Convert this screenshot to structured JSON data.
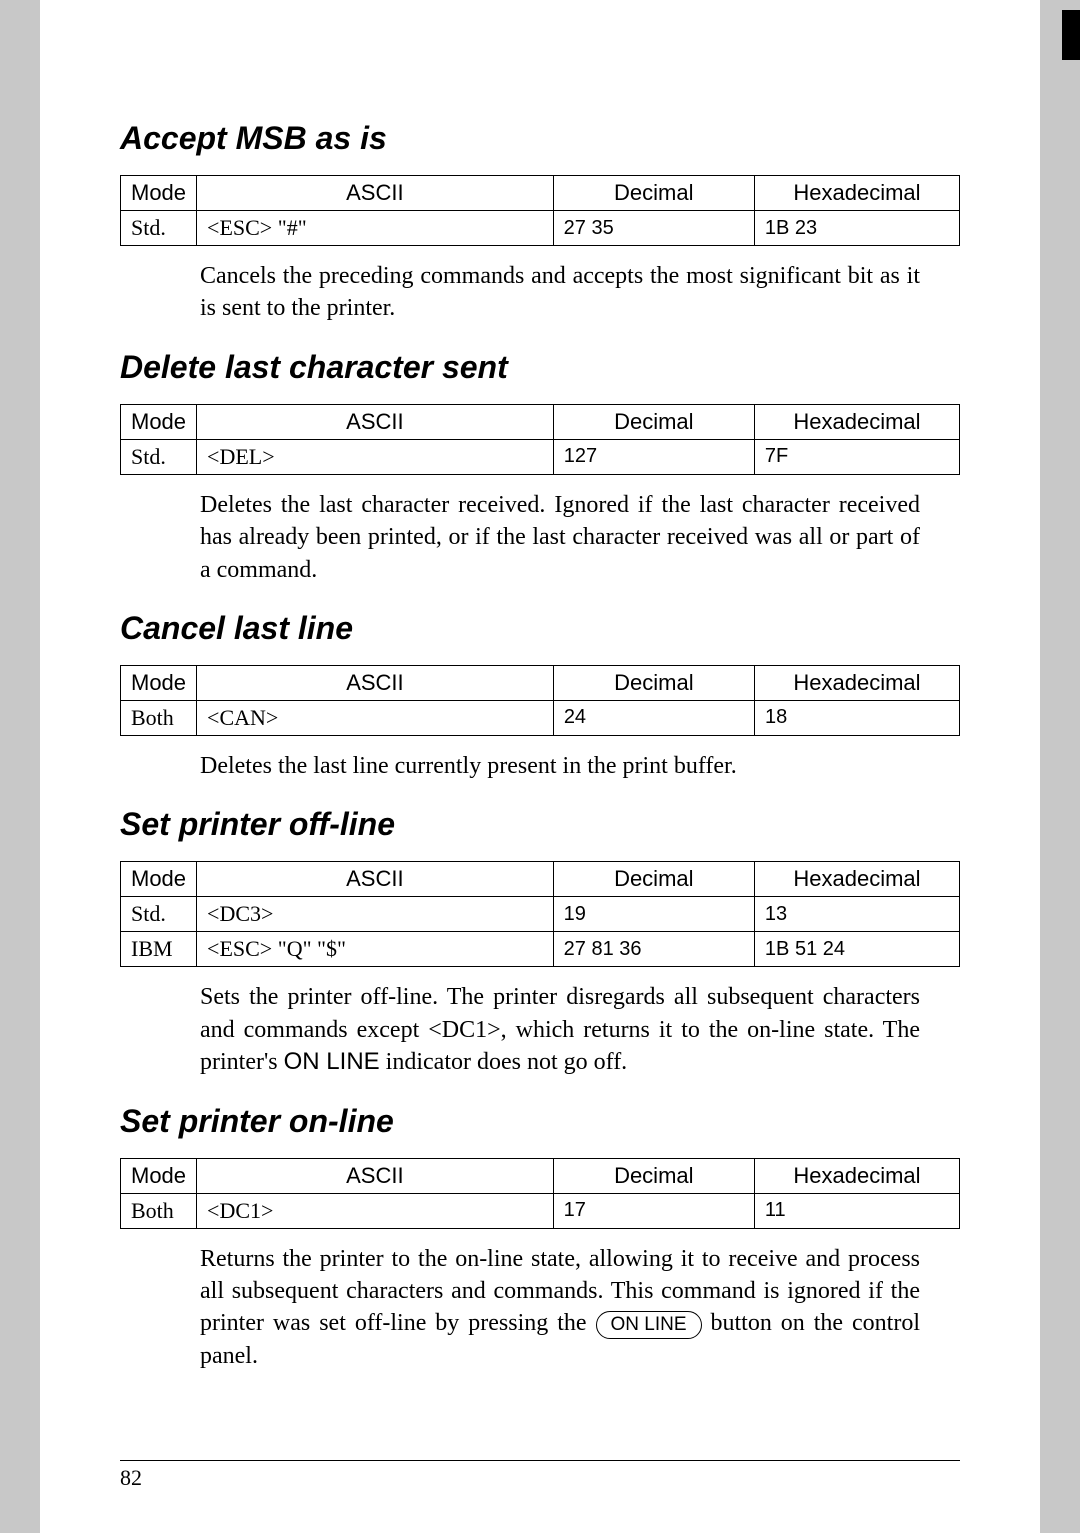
{
  "page_number": "82",
  "sections": [
    {
      "heading": "Accept MSB as is",
      "table": {
        "columns": [
          "Mode",
          "ASCII",
          "Decimal",
          "Hexadecimal"
        ],
        "rows": [
          {
            "mode": "Std.",
            "ascii": "<ESC>   \"#\"",
            "decimal": "27   35",
            "hex": "1B   23"
          }
        ]
      },
      "description": "Cancels the preceding commands and accepts the most significant bit as it is sent to the printer."
    },
    {
      "heading": "Delete last character sent",
      "table": {
        "columns": [
          "Mode",
          "ASCII",
          "Decimal",
          "Hexadecimal"
        ],
        "rows": [
          {
            "mode": "Std.",
            "ascii": "<DEL>",
            "decimal": "127",
            "hex": "7F"
          }
        ]
      },
      "description": "Deletes the last character received. Ignored if the last character received has already been printed, or if the last character received was all or part of a command."
    },
    {
      "heading": "Cancel last line",
      "table": {
        "columns": [
          "Mode",
          "ASCII",
          "Decimal",
          "Hexadecimal"
        ],
        "rows": [
          {
            "mode": "Both",
            "ascii": "<CAN>",
            "decimal": "24",
            "hex": "18"
          }
        ]
      },
      "description": "Deletes the last line currently present in the print buffer."
    },
    {
      "heading": "Set printer off-line",
      "table": {
        "columns": [
          "Mode",
          "ASCII",
          "Decimal",
          "Hexadecimal"
        ],
        "rows": [
          {
            "mode": "Std.",
            "ascii": "<DC3>",
            "decimal": "19",
            "hex": "13"
          },
          {
            "mode": "IBM",
            "ascii": "<ESC>   \"Q\"   \"$\"",
            "decimal": "27   81   36",
            "hex": "1B   51   24"
          }
        ]
      },
      "description_html": true,
      "description_pre": "Sets the printer off-line. The printer disregards all subsequent characters and commands except <DC1>, which returns it to the on-line state. The printer's ",
      "description_online_word": "ON LINE",
      "description_post": " indicator does not go off."
    },
    {
      "heading": "Set printer on-line",
      "table": {
        "columns": [
          "Mode",
          "ASCII",
          "Decimal",
          "Hexadecimal"
        ],
        "rows": [
          {
            "mode": "Both",
            "ascii": "<DC1>",
            "decimal": "17",
            "hex": "11"
          }
        ]
      },
      "description_html": true,
      "description_pre": "Returns the printer to the on-line state, allowing it to receive and process all subsequent characters and commands. This command is ignored if the printer was set off-line by pressing the ",
      "description_button": "ON LINE",
      "description_post": " button on the control panel."
    }
  ]
}
